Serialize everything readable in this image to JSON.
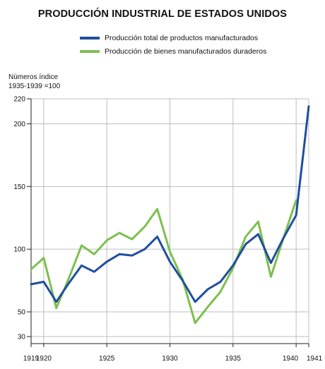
{
  "chart_data": {
    "type": "line",
    "title": "PRODUCCIÓN INDUSTRIAL DE ESTADOS UNIDOS",
    "ylabel": [
      "Números índice",
      "1935-1939 =100"
    ],
    "xlabel": "",
    "xlim": [
      1919,
      1941
    ],
    "ylim": [
      30,
      220
    ],
    "x_ticks": [
      1919,
      1920,
      1925,
      1930,
      1935,
      1940,
      1941
    ],
    "y_ticks": [
      30,
      50,
      100,
      150,
      200,
      220
    ],
    "grid": true,
    "legend_position": "top",
    "x": [
      1919,
      1920,
      1921,
      1922,
      1923,
      1924,
      1925,
      1926,
      1927,
      1928,
      1929,
      1930,
      1931,
      1932,
      1933,
      1934,
      1935,
      1936,
      1937,
      1938,
      1939,
      1940,
      1941
    ],
    "series": [
      {
        "name": "Producción total de productos manufacturados",
        "color": "#1f4e9e",
        "values": [
          72,
          74,
          58,
          73,
          87,
          82,
          90,
          96,
          95,
          100,
          110,
          90,
          75,
          58,
          68,
          74,
          87,
          104,
          112,
          89,
          109,
          127,
          214
        ]
      },
      {
        "name": "Producción de bienes manufacturados duraderos",
        "color": "#7dbf4f",
        "values": [
          84,
          93,
          53,
          77,
          103,
          96,
          107,
          113,
          108,
          118,
          132,
          98,
          76,
          41,
          54,
          66,
          85,
          110,
          122,
          78,
          109,
          139,
          null
        ]
      }
    ]
  }
}
